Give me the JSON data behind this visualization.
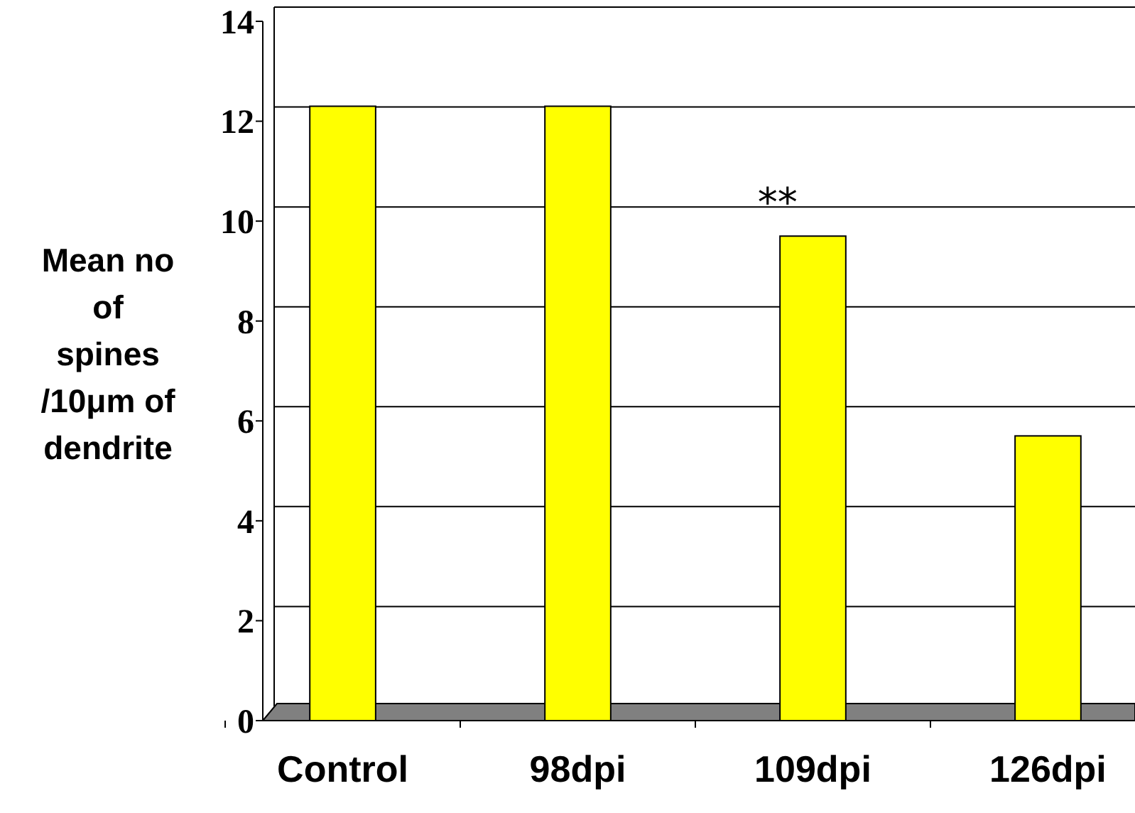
{
  "chart_data": {
    "type": "bar",
    "ylabel": "Mean no of spines /10μm of dendrite",
    "categories": [
      "Control",
      "98dpi",
      "109dpi",
      "126dpi"
    ],
    "values": [
      12.3,
      12.3,
      9.7,
      5.7
    ],
    "color": "#ffff00",
    "ylim": [
      0,
      14
    ],
    "yticks": [
      0,
      2,
      4,
      6,
      8,
      10,
      12,
      14
    ],
    "grid": "y",
    "annotations": [
      "**"
    ]
  }
}
